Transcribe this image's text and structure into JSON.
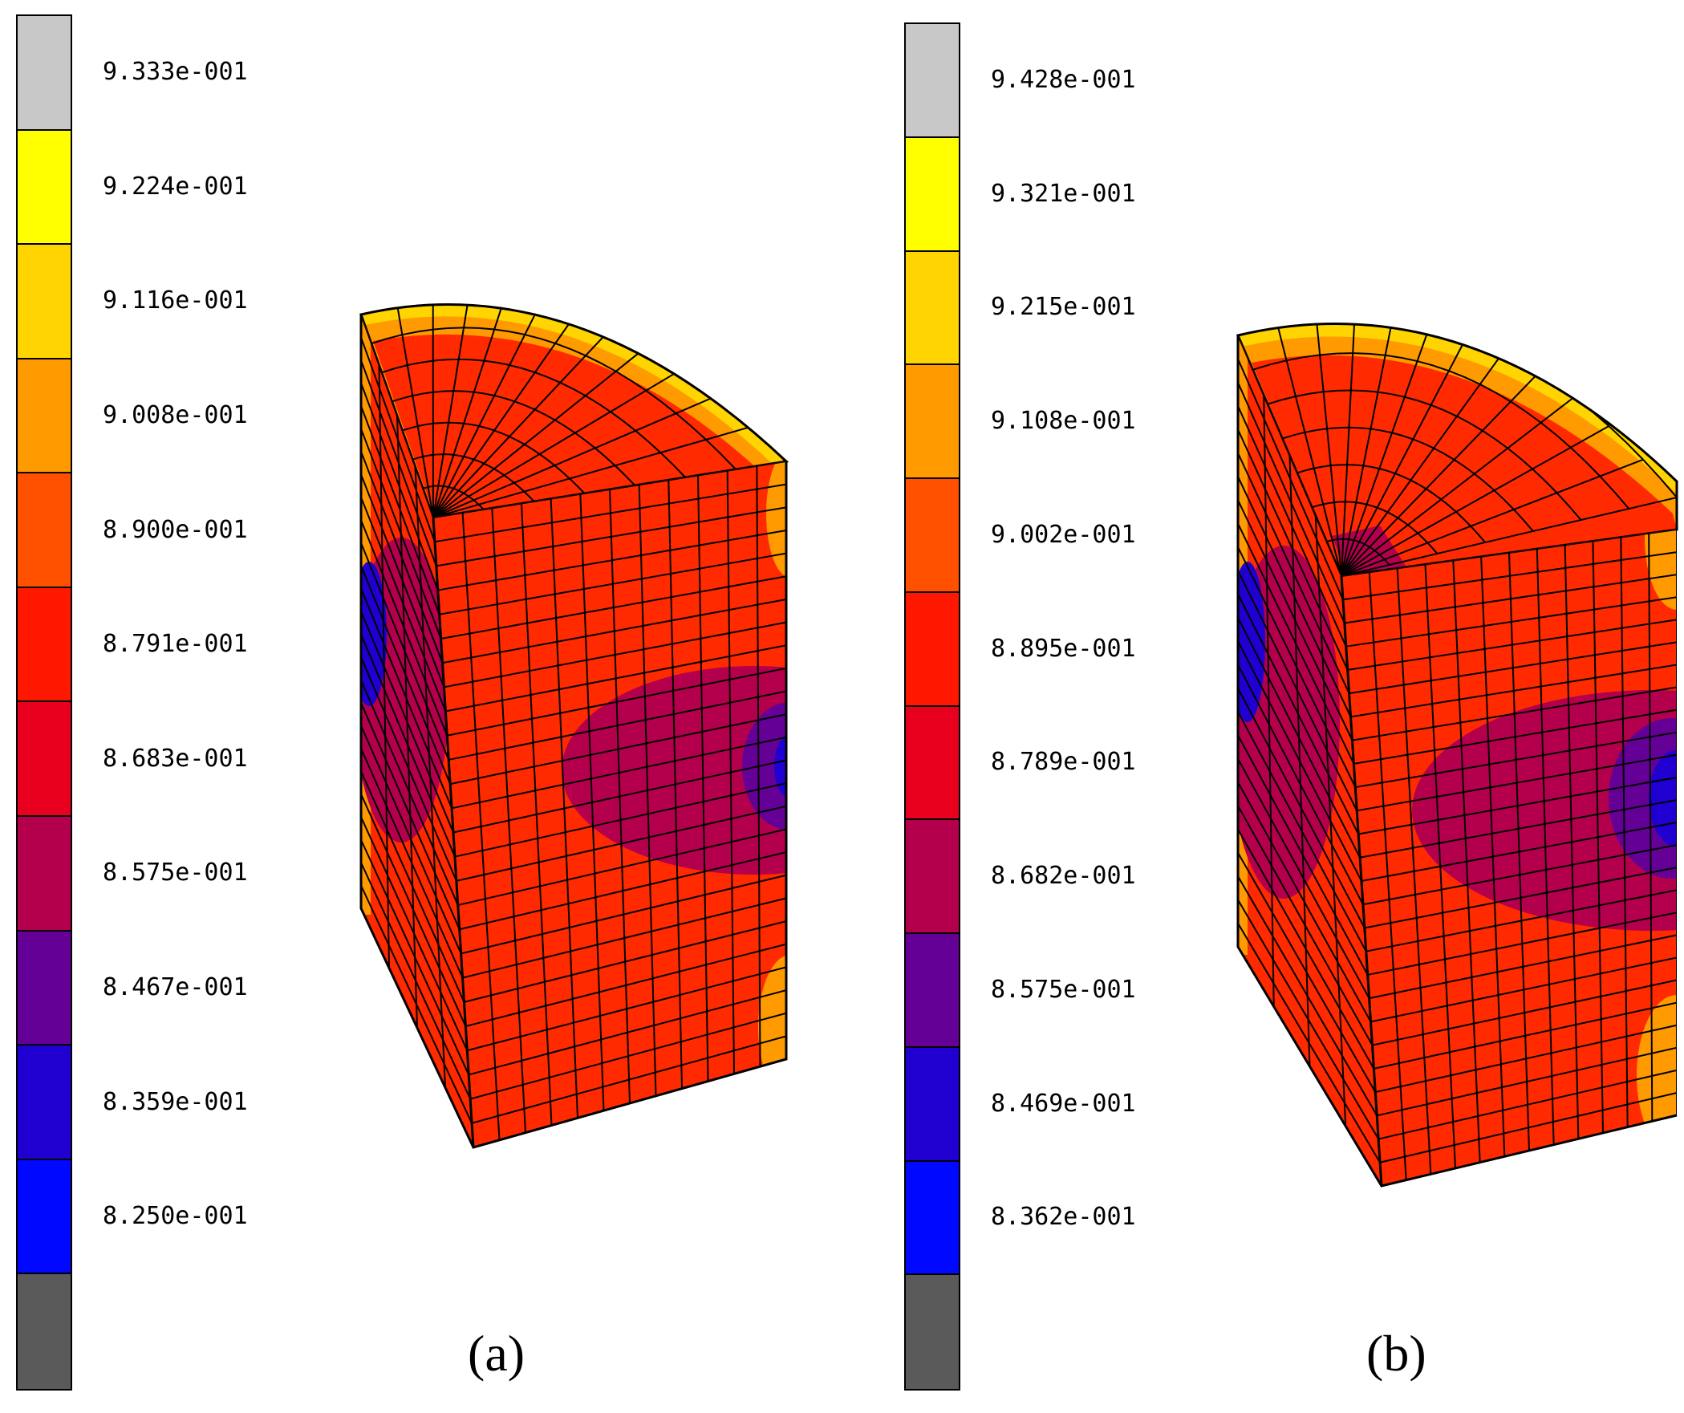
{
  "panels": [
    {
      "caption": "(a)",
      "legend": {
        "labels": [
          "9.333e-001",
          "9.224e-001",
          "9.116e-001",
          "9.008e-001",
          "8.900e-001",
          "8.791e-001",
          "8.683e-001",
          "8.575e-001",
          "8.467e-001",
          "8.359e-001",
          "8.250e-001"
        ],
        "colors": [
          "#c8c8c8",
          "#ffff00",
          "#ffd400",
          "#ff9a00",
          "#ff5000",
          "#ff1800",
          "#e8001e",
          "#b4004c",
          "#640096",
          "#2000d0",
          "#0008ff",
          "#5a5a5a"
        ]
      }
    },
    {
      "caption": "(b)",
      "legend": {
        "labels": [
          "9.428e-001",
          "9.321e-001",
          "9.215e-001",
          "9.108e-001",
          "9.002e-001",
          "8.895e-001",
          "8.789e-001",
          "8.682e-001",
          "8.575e-001",
          "8.469e-001",
          "8.362e-001"
        ],
        "colors": [
          "#c8c8c8",
          "#ffff00",
          "#ffd400",
          "#ff9a00",
          "#ff5000",
          "#ff1800",
          "#e8001e",
          "#b4004c",
          "#640096",
          "#2000d0",
          "#0008ff",
          "#5a5a5a"
        ]
      }
    }
  ],
  "model_colors": {
    "base": "#ff2a00",
    "rim": "#ff9a00",
    "rim_outer": "#ffd400",
    "low": "#b4004c",
    "lower": "#640096",
    "lowest": "#2000d0",
    "mesh": "#000000"
  }
}
